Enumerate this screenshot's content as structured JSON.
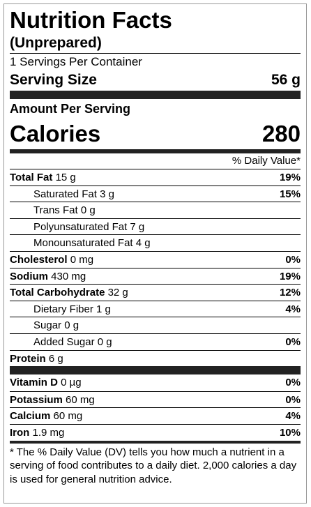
{
  "title": "Nutrition Facts",
  "subtitle": "(Unprepared)",
  "servings": "1 Servings Per Container",
  "serving_size": {
    "label": "Serving Size",
    "value": "56 g"
  },
  "amount_per_serving": "Amount Per Serving",
  "calories": {
    "label": "Calories",
    "value": "280"
  },
  "dv_header": "% Daily Value*",
  "nutrients": [
    {
      "name": "Total Fat",
      "amount": "15 g",
      "dv": "19%",
      "sub": [
        {
          "name": "Saturated Fat",
          "amount": "3 g",
          "dv": "15%"
        },
        {
          "name": "Trans Fat",
          "amount": "0 g"
        },
        {
          "name": "Polyunsaturated Fat",
          "amount": "7 g"
        },
        {
          "name": "Monounsaturated Fat",
          "amount": "4 g"
        }
      ]
    },
    {
      "name": "Cholesterol",
      "amount": "0 mg",
      "dv": "0%"
    },
    {
      "name": "Sodium",
      "amount": "430 mg",
      "dv": "19%"
    },
    {
      "name": "Total Carbohydrate",
      "amount": "32 g",
      "dv": "12%",
      "sub": [
        {
          "name": "Dietary Fiber",
          "amount": "1 g",
          "dv": "4%"
        },
        {
          "name": "Sugar",
          "amount": "0 g"
        },
        {
          "name": "Added Sugar",
          "amount": "0 g",
          "dv": "0%"
        }
      ]
    },
    {
      "name": "Protein",
      "amount": "6 g"
    }
  ],
  "vitamins": [
    {
      "name": "Vitamin D",
      "amount": "0 µg",
      "dv": "0%"
    },
    {
      "name": "Potassium",
      "amount": "60 mg",
      "dv": "0%"
    },
    {
      "name": "Calcium",
      "amount": "60 mg",
      "dv": "4%"
    },
    {
      "name": "Iron",
      "amount": "1.9 mg",
      "dv": "10%"
    }
  ],
  "footnote": "* The % Daily Value (DV) tells you how much a nutrient in a serving of food contributes to a daily diet. 2,000 calories a day is used for general nutrition advice."
}
